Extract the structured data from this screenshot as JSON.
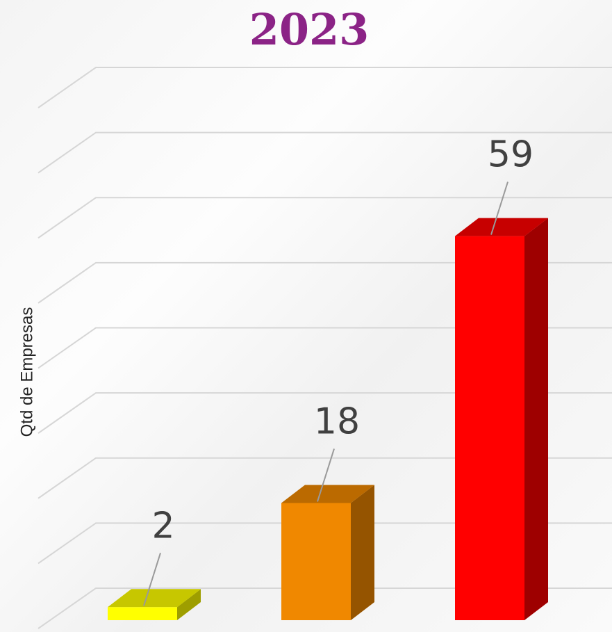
{
  "chart_data": {
    "type": "bar3d",
    "title": "2023",
    "y_label": "Qtd de Empresas",
    "categories": [
      null,
      null,
      null
    ],
    "values": [
      2,
      18,
      59
    ],
    "colors": [
      "#ffff00",
      "#f08800",
      "#ff0000"
    ],
    "ylim": [
      0,
      80
    ],
    "yticks": [
      0,
      10,
      20,
      30,
      40,
      50,
      60,
      70,
      80
    ],
    "grid": true
  }
}
